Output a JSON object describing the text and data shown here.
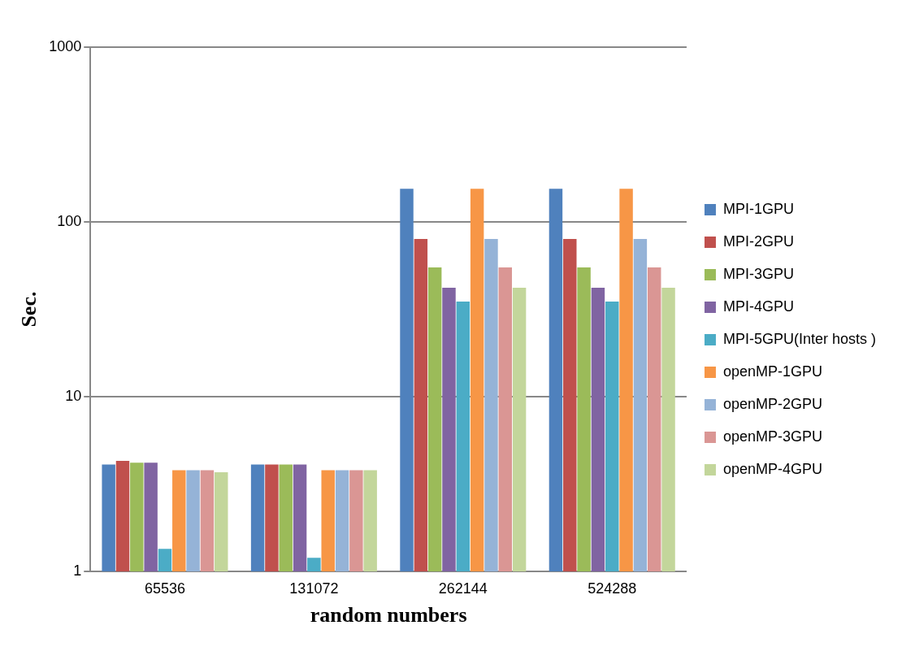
{
  "chart_data": {
    "type": "bar",
    "xlabel": "random numbers",
    "ylabel": "Sec.",
    "categories": [
      "65536",
      "131072",
      "262144",
      "524288"
    ],
    "log": "y",
    "ylim": [
      1,
      1000
    ],
    "yticks": [
      1,
      10,
      100,
      1000
    ],
    "grid": "y",
    "legend": "right",
    "series": [
      {
        "name": "MPI-1GPU",
        "color": "#4f81bd",
        "values": [
          4.1,
          4.1,
          155,
          155
        ]
      },
      {
        "name": "MPI-2GPU",
        "color": "#c0504d",
        "values": [
          4.3,
          4.1,
          80,
          80
        ]
      },
      {
        "name": "MPI-3GPU",
        "color": "#9bbb59",
        "values": [
          4.2,
          4.1,
          55,
          55
        ]
      },
      {
        "name": "MPI-4GPU",
        "color": "#8064a2",
        "values": [
          4.2,
          4.1,
          42,
          42
        ]
      },
      {
        "name": "MPI-5GPU(Inter hosts )",
        "color": "#4bacc6",
        "values": [
          1.35,
          1.2,
          35,
          35
        ]
      },
      {
        "name": "openMP-1GPU",
        "color": "#f79646",
        "values": [
          3.8,
          3.8,
          155,
          155
        ]
      },
      {
        "name": "openMP-2GPU",
        "color": "#95b3d7",
        "values": [
          3.8,
          3.8,
          80,
          80
        ]
      },
      {
        "name": "openMP-3GPU",
        "color": "#da9694",
        "values": [
          3.8,
          3.8,
          55,
          55
        ]
      },
      {
        "name": "openMP-4GPU",
        "color": "#c3d69b",
        "values": [
          3.7,
          3.8,
          42,
          42
        ]
      }
    ]
  }
}
